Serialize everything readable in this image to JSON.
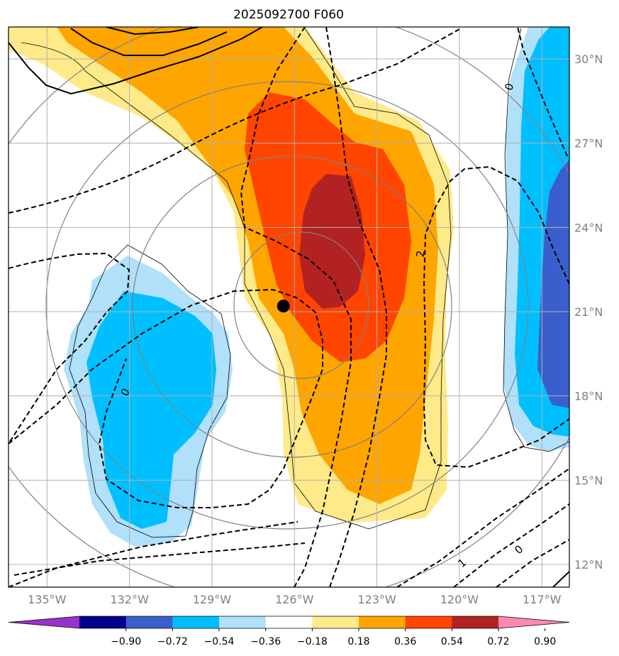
{
  "title": "2025092700 F060",
  "map": {
    "lon_ticks": [
      "135°W",
      "132°W",
      "129°W",
      "126°W",
      "123°W",
      "120°W",
      "117°W"
    ],
    "lat_ticks": [
      "12°N",
      "15°N",
      "18°N",
      "21°N",
      "24°N",
      "27°N",
      "30°N"
    ],
    "contour_labels": [
      "0",
      "0",
      "2",
      "0",
      "1"
    ],
    "storm_center": {
      "lon": -126.4,
      "lat": 21.2
    },
    "fill_colors": {
      "pos_018_036": "#ffea8a",
      "pos_036_054": "#ffa500",
      "pos_054_072": "#ff4500",
      "pos_072_090": "#b22222",
      "neg_018_036": "#b0e0fa",
      "neg_036_054": "#00bfff",
      "neg_054_072": "#3a5fcd"
    }
  },
  "colorbar": {
    "colors": [
      "#9932cc",
      "#00008b",
      "#3a5fcd",
      "#00bfff",
      "#b0e0fa",
      "#ffffff",
      "#ffea8a",
      "#ffa500",
      "#ff4500",
      "#b22222",
      "#ff88b0"
    ],
    "tick_labels": [
      "−0.90",
      "−0.72",
      "−0.54",
      "−0.36",
      "−0.18",
      "0.18",
      "0.36",
      "0.54",
      "0.72",
      "0.90"
    ]
  }
}
